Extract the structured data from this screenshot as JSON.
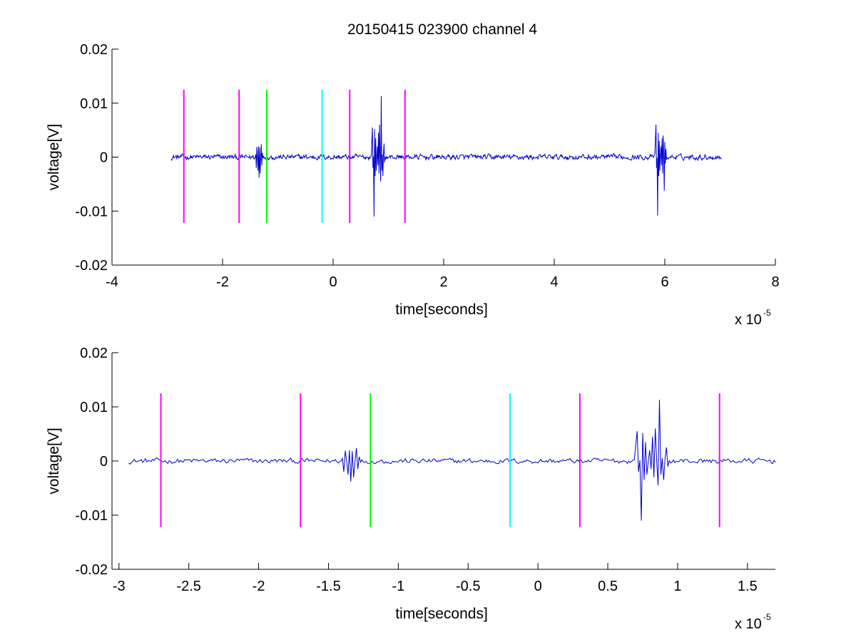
{
  "figure": {
    "title": "20150415 023900 channel 4"
  },
  "chart_data": [
    {
      "type": "line",
      "xlabel": "time[seconds]",
      "ylabel": "voltage[V]",
      "x_exponent_label": "x 10",
      "x_exponent": "-5",
      "xlim": [
        -4,
        8
      ],
      "ylim": [
        -0.02,
        0.02
      ],
      "xticks": [
        -4,
        -2,
        0,
        2,
        4,
        6,
        8
      ],
      "xtick_labels": [
        "-4",
        "-2",
        "0",
        "2",
        "4",
        "6",
        "8"
      ],
      "yticks": [
        -0.02,
        -0.01,
        0,
        0.01,
        0.02
      ],
      "ytick_labels": [
        "-0.02",
        "-0.01",
        "0",
        "0.01",
        "0.02"
      ],
      "grid": false,
      "signal": {
        "color": "#0000CC",
        "x_range": [
          -2.93,
          7.02
        ],
        "noise_amplitude": 0.0004,
        "bursts": [
          {
            "x": -1.4,
            "values": [
              0.0005,
              -0.002,
              0.0019,
              -0.0025,
              0.002,
              -0.0038,
              0.0018,
              -0.003,
              0.0024,
              -0.0015,
              0.0008
            ]
          },
          {
            "x": 0.7,
            "values": [
              0.003,
              0.0055,
              -0.002,
              -0.011,
              0.0052,
              -0.0035,
              0.0035,
              -0.0025,
              0.002,
              -0.0015,
              0.0045,
              -0.003,
              0.006,
              -0.0045,
              0.0113,
              -0.0025,
              0.0005,
              -0.0035,
              0.0025,
              -0.001
            ]
          },
          {
            "x": 5.83,
            "values": [
              0.0035,
              0.006,
              -0.002,
              -0.0108,
              0.0045,
              -0.0035,
              0.003,
              -0.0025,
              0.002,
              -0.0015,
              0.0035,
              -0.003,
              0.004,
              -0.0062,
              0.0028,
              -0.0012,
              0.0015,
              -0.0005
            ]
          }
        ]
      },
      "markers": [
        {
          "x": -2.7,
          "color": "#FF00FF"
        },
        {
          "x": -1.7,
          "color": "#FF00FF"
        },
        {
          "x": -1.2,
          "color": "#00FF00"
        },
        {
          "x": -0.2,
          "color": "#00FFFF"
        },
        {
          "x": 0.3,
          "color": "#FF00FF"
        },
        {
          "x": 1.3,
          "color": "#FF00FF"
        }
      ],
      "marker_range": [
        -0.0122,
        0.0125
      ]
    },
    {
      "type": "line",
      "xlabel": "time[seconds]",
      "ylabel": "voltage[V]",
      "x_exponent_label": "x 10",
      "x_exponent": "-5",
      "xlim": [
        -3.05,
        1.7
      ],
      "ylim": [
        -0.02,
        0.02
      ],
      "xticks": [
        -3,
        -2.5,
        -2,
        -1.5,
        -1,
        -0.5,
        0,
        0.5,
        1,
        1.5
      ],
      "xtick_labels": [
        "-3",
        "-2.5",
        "-2",
        "-1.5",
        "-1",
        "-0.5",
        "0",
        "0.5",
        "1",
        "1.5"
      ],
      "yticks": [
        -0.02,
        -0.01,
        0,
        0.01,
        0.02
      ],
      "ytick_labels": [
        "-0.02",
        "-0.01",
        "0",
        "0.01",
        "0.02"
      ],
      "grid": false,
      "signal": {
        "color": "#0000CC",
        "x_range": [
          -2.93,
          1.7
        ],
        "noise_amplitude": 0.0004,
        "bursts": [
          {
            "x": -1.4,
            "values": [
              0.0005,
              -0.002,
              0.0019,
              -0.0025,
              0.002,
              -0.0038,
              0.0018,
              -0.003,
              0.0024,
              -0.0015,
              0.0008
            ]
          },
          {
            "x": 0.7,
            "values": [
              0.003,
              0.0055,
              -0.002,
              -0.011,
              0.0052,
              -0.0035,
              0.0035,
              -0.0025,
              0.002,
              -0.0015,
              0.0045,
              -0.003,
              0.006,
              -0.0045,
              0.0113,
              -0.0025,
              0.0005,
              -0.0035,
              0.0025,
              -0.001
            ]
          }
        ]
      },
      "markers": [
        {
          "x": -2.7,
          "color": "#FF00FF"
        },
        {
          "x": -1.7,
          "color": "#FF00FF"
        },
        {
          "x": -1.2,
          "color": "#00FF00"
        },
        {
          "x": -0.2,
          "color": "#00FFFF"
        },
        {
          "x": 0.3,
          "color": "#FF00FF"
        },
        {
          "x": 1.3,
          "color": "#FF00FF"
        }
      ],
      "marker_range": [
        -0.0122,
        0.0125
      ]
    }
  ]
}
